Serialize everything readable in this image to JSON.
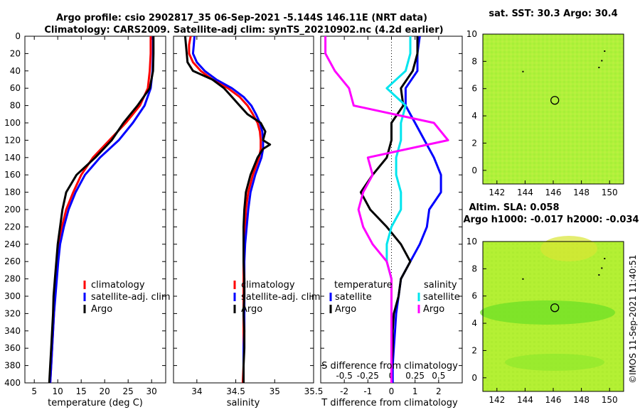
{
  "figure": {
    "title_line1": "Argo profile: csio 2902817_35 06-Sep-2021 -5.144S 146.11E (NRT data)",
    "title_line2": "Climatology: CARS2009. Satellite-adj clim: synTS_20210902.nc (4.2d earlier)",
    "copyright": "©IMOS 11-Sep-2021 11:40:51"
  },
  "colors": {
    "climatology": "#ff0000",
    "satellite": "#0000ff",
    "argo": "#000000",
    "sat_salinity": "#00e5ee",
    "argo_salinity": "#ff00ff"
  },
  "chart_data": [
    {
      "id": "temp",
      "type": "line",
      "xlabel": "temperature (deg C)",
      "ylabel": "",
      "xlim": [
        3,
        33
      ],
      "ylim": [
        400,
        0
      ],
      "xticks": [
        5,
        10,
        15,
        20,
        25,
        30
      ],
      "yticks": [
        0,
        20,
        40,
        60,
        80,
        100,
        120,
        140,
        160,
        180,
        200,
        220,
        240,
        260,
        280,
        300,
        320,
        340,
        360,
        380,
        400
      ],
      "depth": [
        0,
        20,
        40,
        60,
        80,
        100,
        120,
        140,
        160,
        180,
        200,
        220,
        240,
        260,
        280,
        300,
        320,
        340,
        360,
        380,
        400
      ],
      "legend": [
        "climatology",
        "satellite-adj. clim",
        "Argo"
      ],
      "series": [
        {
          "name": "climatology",
          "color": "#ff0000",
          "values": [
            29.8,
            29.8,
            29.6,
            29.2,
            27.5,
            24.5,
            21.0,
            17.5,
            15.0,
            13.3,
            11.8,
            10.9,
            10.3,
            10.0,
            9.7,
            9.4,
            9.2,
            9.0,
            8.8,
            8.6,
            8.4
          ]
        },
        {
          "name": "satellite",
          "color": "#0000ff",
          "values": [
            30.3,
            30.3,
            30.2,
            29.8,
            28.5,
            26.0,
            23.0,
            19.0,
            15.8,
            13.8,
            12.3,
            11.3,
            10.5,
            10.1,
            9.8,
            9.5,
            9.2,
            9.0,
            8.8,
            8.6,
            8.4
          ]
        },
        {
          "name": "Argo",
          "color": "#000000",
          "values": [
            30.4,
            30.4,
            30.3,
            29.6,
            27.0,
            24.0,
            21.5,
            18.0,
            14.0,
            11.8,
            11.0,
            10.5,
            10.0,
            9.7,
            9.4,
            9.1,
            9.0,
            8.8,
            8.6,
            8.4,
            8.2
          ]
        }
      ]
    },
    {
      "id": "sal",
      "type": "line",
      "xlabel": "salinity",
      "xlim": [
        33.7,
        35.5
      ],
      "ylim": [
        400,
        0
      ],
      "xticks": [
        34,
        34.5,
        35,
        35.5
      ],
      "depth": [
        0,
        10,
        20,
        30,
        40,
        50,
        60,
        70,
        80,
        90,
        100,
        110,
        120,
        125,
        130,
        140,
        160,
        180,
        200,
        220,
        240,
        260,
        280,
        300,
        320,
        340,
        360,
        380,
        400
      ],
      "legend": [
        "climatology",
        "satellite-adj. clim",
        "Argo"
      ],
      "series": [
        {
          "name": "climatology",
          "color": "#ff0000",
          "values": [
            33.92,
            33.9,
            33.9,
            33.95,
            34.05,
            34.2,
            34.4,
            34.55,
            34.65,
            34.72,
            34.78,
            34.81,
            34.82,
            34.82,
            34.82,
            34.8,
            34.72,
            34.66,
            34.63,
            34.62,
            34.61,
            34.6,
            34.6,
            34.6,
            34.6,
            34.6,
            34.6,
            34.6,
            34.59
          ]
        },
        {
          "name": "satellite",
          "color": "#0000ff",
          "values": [
            33.97,
            33.96,
            33.95,
            34.0,
            34.1,
            34.25,
            34.45,
            34.6,
            34.7,
            34.76,
            34.81,
            34.84,
            34.85,
            34.85,
            34.85,
            34.83,
            34.75,
            34.69,
            34.66,
            34.64,
            34.62,
            34.61,
            34.61,
            34.61,
            34.61,
            34.61,
            34.6,
            34.6,
            34.6
          ]
        },
        {
          "name": "Argo",
          "color": "#000000",
          "values": [
            33.85,
            33.86,
            33.87,
            33.88,
            33.95,
            34.2,
            34.35,
            34.45,
            34.55,
            34.65,
            34.82,
            34.88,
            34.85,
            34.94,
            34.85,
            34.78,
            34.69,
            34.63,
            34.61,
            34.6,
            34.6,
            34.6,
            34.61,
            34.61,
            34.6,
            34.61,
            34.61,
            34.6,
            34.6
          ]
        }
      ]
    },
    {
      "id": "diff",
      "type": "line",
      "xlabel_bottom": "T difference from climatology",
      "xlabel_top": "S difference from climatology",
      "xlim": [
        -3,
        3
      ],
      "ylim": [
        400,
        0
      ],
      "xticks": [
        -2,
        -1,
        0,
        1,
        2
      ],
      "xticks_top": [
        -0.5,
        -0.25,
        0,
        0.25,
        0.5
      ],
      "xtick_labels_top": [
        "-0.5",
        "-0.25",
        "0",
        "0.25",
        "0.5"
      ],
      "depth": [
        0,
        20,
        40,
        60,
        80,
        100,
        120,
        140,
        160,
        180,
        200,
        220,
        240,
        260,
        280,
        300,
        320,
        340,
        360,
        380,
        400
      ],
      "legend_temperature": {
        "heading": "temperature",
        "items": [
          "satellite",
          "Argo"
        ]
      },
      "legend_salinity": {
        "heading": "salinity",
        "items": [
          "satellite",
          "Argo"
        ]
      },
      "series": [
        {
          "name": "temperature satellite",
          "color": "#0000ff",
          "values": [
            1.2,
            1.1,
            1.1,
            0.6,
            0.6,
            1.0,
            1.4,
            1.8,
            2.1,
            2.1,
            1.6,
            1.5,
            1.2,
            0.8,
            0.4,
            0.3,
            0.2,
            0.15,
            0.1,
            0.05,
            0.05
          ]
        },
        {
          "name": "temperature Argo",
          "color": "#000000",
          "values": [
            1.1,
            1.1,
            0.9,
            0.4,
            0.5,
            0.0,
            0.0,
            -0.2,
            -0.8,
            -1.3,
            -0.9,
            -0.2,
            0.4,
            0.8,
            0.4,
            0.3,
            0.1,
            0.05,
            0.05,
            0.0,
            0.0
          ]
        },
        {
          "name": "salinity satellite",
          "color": "#00e5ee",
          "values": [
            0.2,
            0.2,
            0.15,
            -0.05,
            0.15,
            0.1,
            0.1,
            0.05,
            0.05,
            0.1,
            0.1,
            0.0,
            -0.05,
            -0.05,
            0.0,
            0.0,
            0.0,
            0.0,
            0.0,
            0.0,
            0.0
          ]
        },
        {
          "name": "salinity Argo",
          "color": "#ff00ff",
          "values": [
            -0.7,
            -0.7,
            -0.6,
            -0.45,
            -0.4,
            0.45,
            0.6,
            -0.25,
            -0.2,
            -0.3,
            -0.35,
            -0.3,
            -0.2,
            -0.05,
            0.0,
            0.0,
            0.0,
            0.0,
            0.0,
            0.0,
            0.0
          ]
        }
      ]
    },
    {
      "id": "sst_map",
      "type": "heatmap",
      "title": "sat. SST: 30.3 Argo: 30.4",
      "xlim": [
        141,
        151
      ],
      "ylim": [
        -1,
        10
      ],
      "xticks": [
        142,
        144,
        146,
        148,
        150
      ],
      "yticks": [
        0,
        2,
        4,
        6,
        8,
        10
      ],
      "argo_position": [
        146.11,
        5.14
      ]
    },
    {
      "id": "sla_map",
      "type": "heatmap",
      "title1": "Altim. SLA: 0.058",
      "title2": "Argo h1000: -0.017 h2000: -0.034",
      "xlim": [
        141,
        151
      ],
      "ylim": [
        -1,
        10
      ],
      "xticks": [
        142,
        144,
        146,
        148,
        150
      ],
      "yticks": [
        0,
        2,
        4,
        6,
        8,
        10
      ],
      "argo_position": [
        146.11,
        5.14
      ]
    }
  ]
}
